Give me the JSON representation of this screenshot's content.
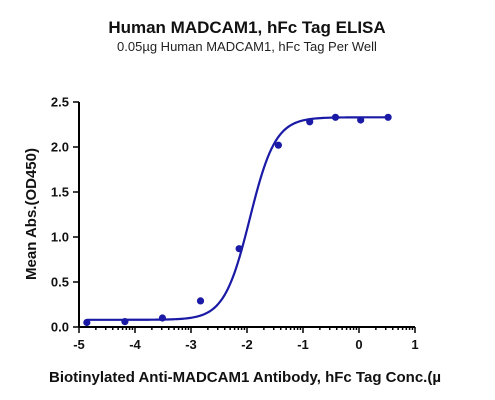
{
  "chart_data": {
    "type": "scatter",
    "title": "Human MADCAM1, hFc Tag ELISA",
    "subtitle": "0.05µg Human MADCAM1, hFc Tag Per Well",
    "xlabel": "Biotinylated Anti-MADCAM1 Antibody, hFc Tag Conc.(µ",
    "ylabel": "Mean Abs.(OD450)",
    "xlim": [
      -5,
      1
    ],
    "ylim": [
      0,
      2.5
    ],
    "x_ticks": [
      -5,
      -4,
      -3,
      -2,
      -1,
      0,
      1
    ],
    "y_ticks": [
      0.0,
      0.5,
      1.0,
      1.5,
      2.0,
      2.5
    ],
    "x_tick_labels": [
      "-5",
      "-4",
      "-3",
      "-2",
      "-1",
      "0",
      "1"
    ],
    "y_tick_labels": [
      "0.0",
      "0.5",
      "1.0",
      "1.5",
      "2.0",
      "2.5"
    ],
    "series": [
      {
        "color": "#1a1aa6",
        "x": [
          -4.86,
          -4.18,
          -3.51,
          -2.83,
          -2.14,
          -1.44,
          -0.88,
          -0.42,
          0.03,
          0.52
        ],
        "y": [
          0.05,
          0.06,
          0.1,
          0.29,
          0.87,
          2.02,
          2.28,
          2.33,
          2.3,
          2.33
        ],
        "fit": {
          "model": "4PL",
          "bottom": 0.08,
          "top": 2.33,
          "log_ec50": -1.95,
          "hill": 1.9
        }
      }
    ],
    "grid": false,
    "legend": "none"
  }
}
